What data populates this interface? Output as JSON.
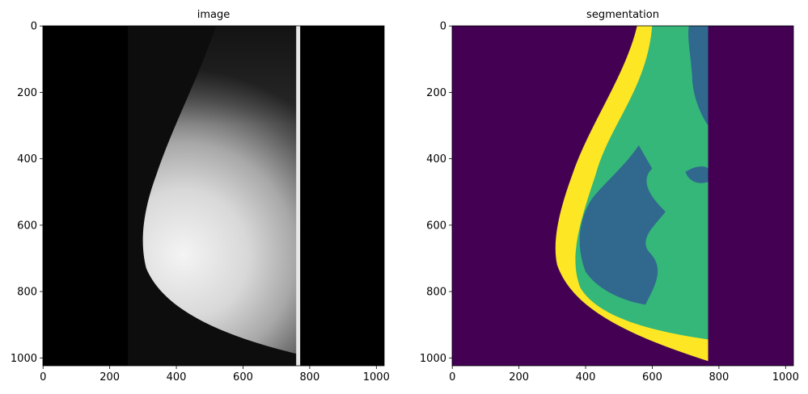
{
  "chart_data": [
    {
      "type": "image",
      "title": "image",
      "xlim": [
        -0.5,
        1023.5
      ],
      "ylim": [
        1023.5,
        -0.5
      ],
      "xticks": [
        0,
        200,
        400,
        600,
        800,
        1000
      ],
      "yticks": [
        0,
        200,
        400,
        600,
        800,
        1000
      ]
    },
    {
      "type": "image",
      "title": "segmentation",
      "xlim": [
        -0.5,
        1023.5
      ],
      "ylim": [
        1023.5,
        -0.5
      ],
      "xticks": [
        0,
        200,
        400,
        600,
        800,
        1000
      ],
      "yticks": [
        0,
        200,
        400,
        600,
        800,
        1000
      ]
    }
  ]
}
